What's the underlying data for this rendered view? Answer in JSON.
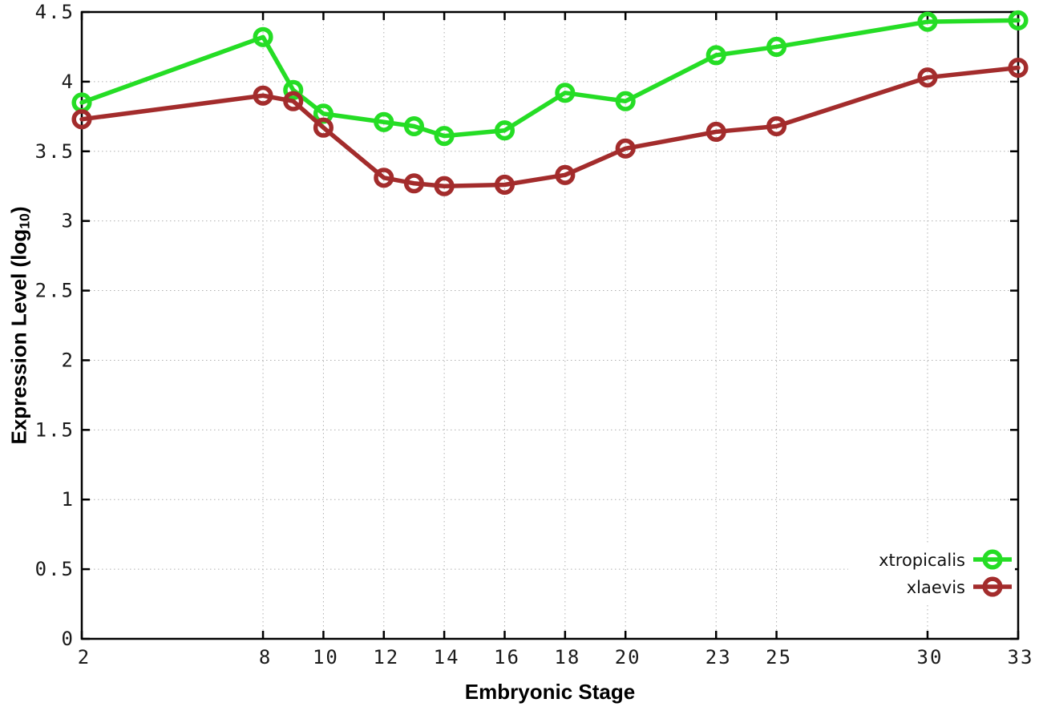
{
  "chart_data": {
    "type": "line",
    "title": "",
    "xlabel": "Embryonic Stage",
    "ylabel_main": "Expression Level (log",
    "ylabel_sub": "10",
    "ylabel_suffix": ")",
    "x": [
      2,
      8,
      9,
      10,
      12,
      13,
      14,
      16,
      18,
      20,
      23,
      25,
      30,
      33
    ],
    "series": [
      {
        "name": "xtropicalis",
        "color": "#25dd25",
        "values": [
          3.85,
          4.32,
          3.94,
          3.77,
          3.71,
          3.68,
          3.61,
          3.65,
          3.92,
          3.86,
          4.19,
          4.25,
          4.43,
          4.44
        ]
      },
      {
        "name": "xlaevis",
        "color": "#a32c2c",
        "values": [
          3.73,
          3.9,
          3.86,
          3.67,
          3.31,
          3.27,
          3.25,
          3.26,
          3.33,
          3.52,
          3.64,
          3.68,
          4.03,
          4.1
        ]
      }
    ],
    "xlim": [
      2,
      33
    ],
    "ylim": [
      0,
      4.5
    ],
    "x_ticks": [
      2,
      8,
      10,
      12,
      14,
      16,
      18,
      20,
      23,
      25,
      30,
      33
    ],
    "x_tick_labels": [
      "2",
      "8",
      "10",
      "12",
      "14",
      "16",
      "18",
      "20",
      "23",
      "25",
      "30",
      "33"
    ],
    "y_ticks": [
      0,
      0.5,
      1,
      1.5,
      2,
      2.5,
      3,
      3.5,
      4,
      4.5
    ],
    "y_tick_labels": [
      "0",
      "0.5",
      "1",
      "1.5",
      "2",
      "2.5",
      "3",
      "3.5",
      "4",
      "4.5"
    ],
    "grid": true,
    "legend_position": "bottom-right",
    "colors": {
      "border": "#000000",
      "grid": "#b0b0b0",
      "background": "#ffffff",
      "tick_text": "#1a1a1a"
    }
  }
}
